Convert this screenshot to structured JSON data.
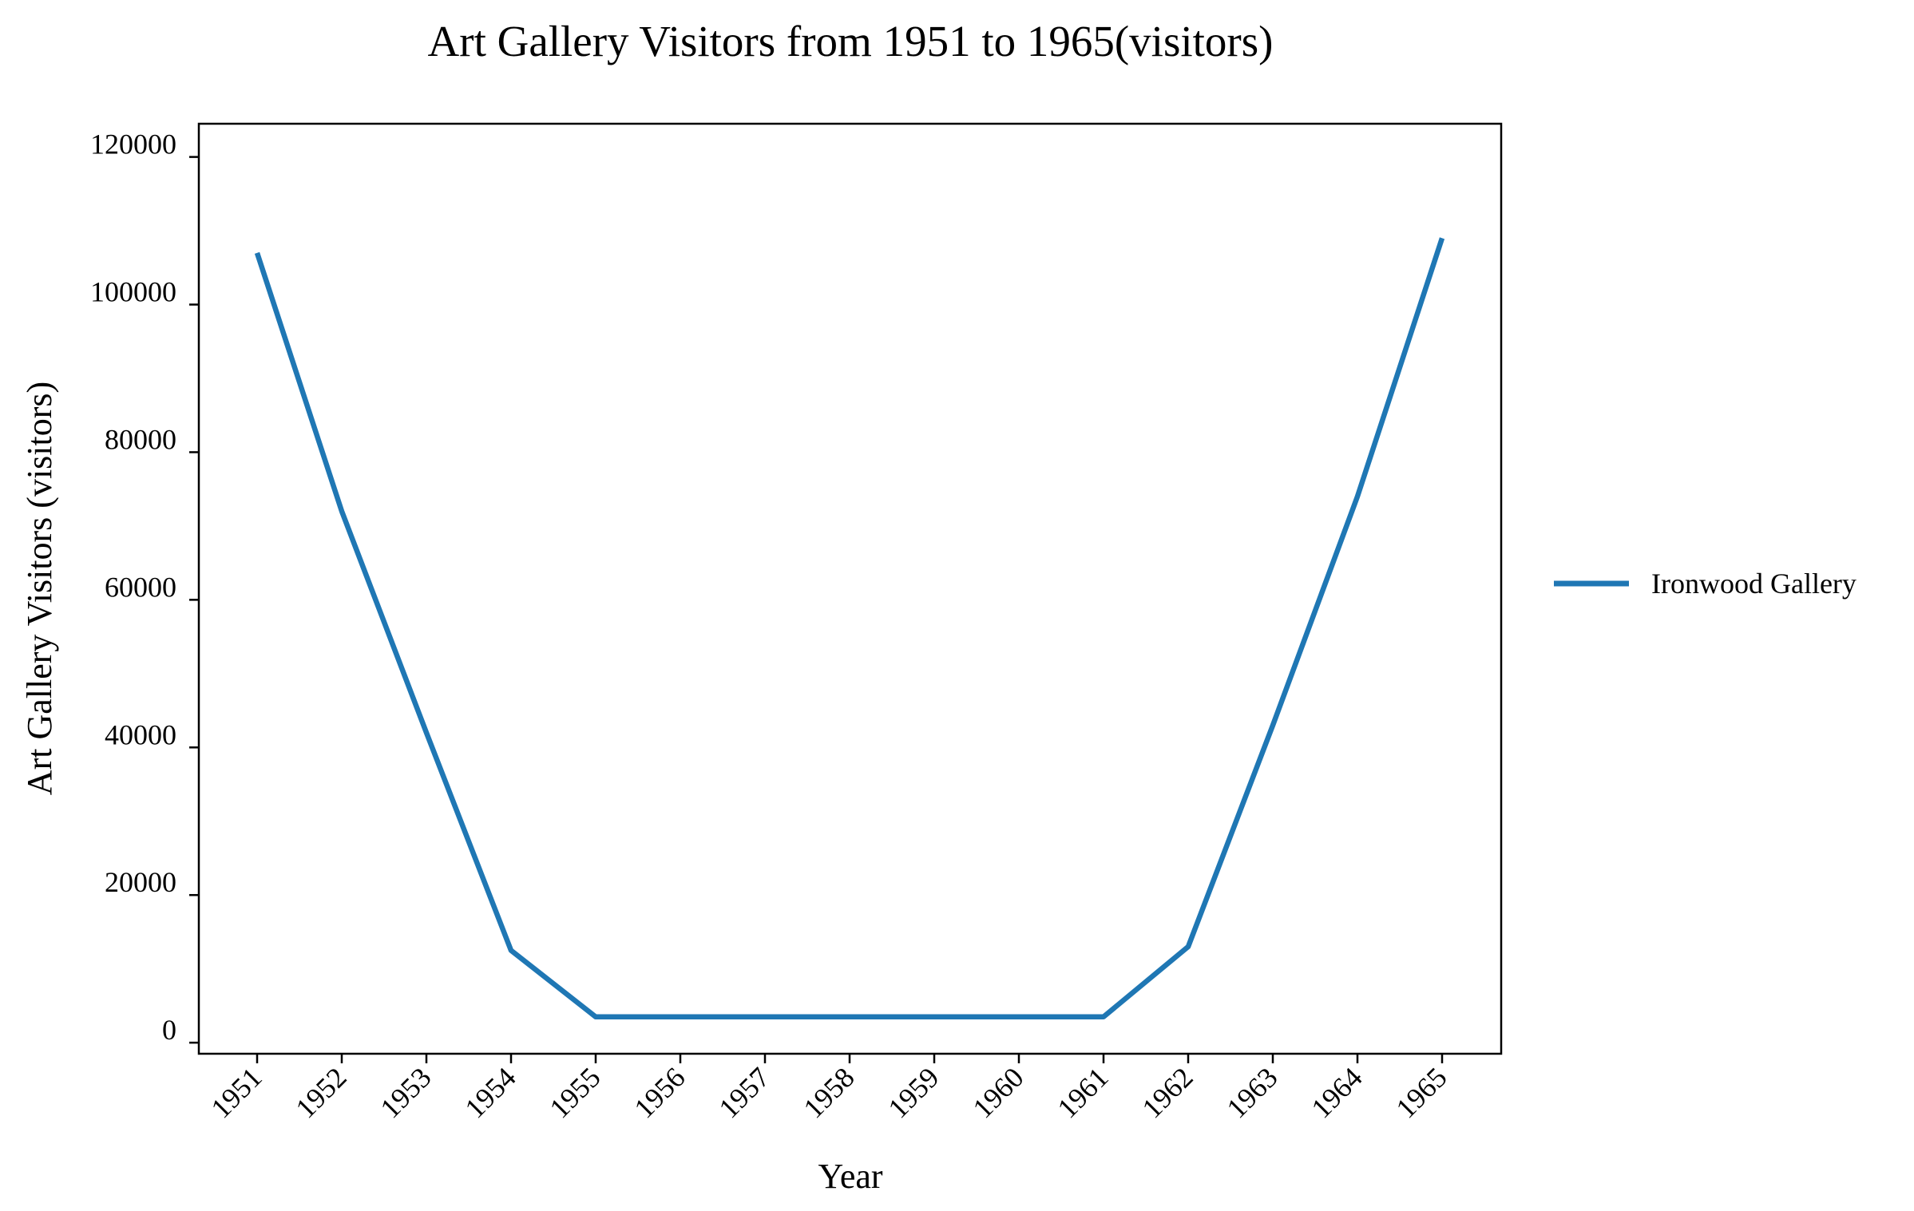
{
  "chart_data": {
    "type": "line",
    "title": "Art Gallery Visitors from 1951 to 1965(visitors)",
    "xlabel": "Year",
    "ylabel": "Art Gallery Visitors (visitors)",
    "categories": [
      "1951",
      "1952",
      "1953",
      "1954",
      "1955",
      "1956",
      "1957",
      "1958",
      "1959",
      "1960",
      "1961",
      "1962",
      "1963",
      "1964",
      "1965"
    ],
    "ylim": [
      -1500,
      124500
    ],
    "yticks": [
      0,
      20000,
      40000,
      60000,
      80000,
      100000,
      120000
    ],
    "ytick_labels": [
      "0",
      "20000",
      "40000",
      "60000",
      "80000",
      "100000",
      "120000"
    ],
    "grid": false,
    "legend_position": "right",
    "series": [
      {
        "name": "Ironwood Gallery",
        "color": "#1f77b4",
        "values": [
          107000,
          72000,
          42000,
          12500,
          3500,
          3500,
          3500,
          3500,
          3500,
          3500,
          3500,
          13000,
          43000,
          74000,
          109000
        ]
      }
    ]
  }
}
